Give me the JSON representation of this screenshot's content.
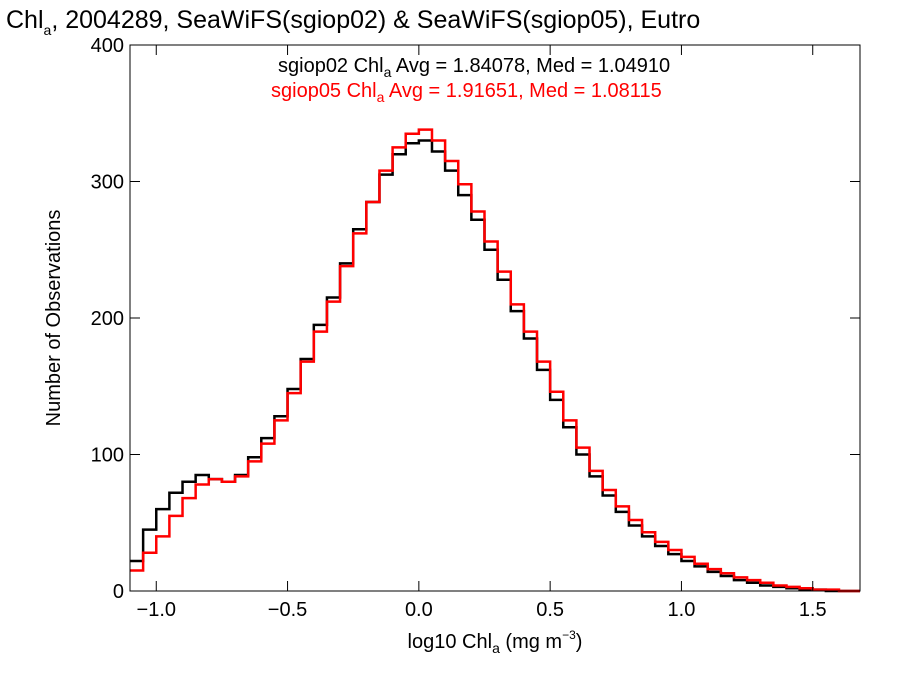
{
  "chart_data": {
    "type": "line",
    "title_main": "Chl",
    "title_sub": "a",
    "title_rest": ", 2004289, SeaWiFS(sgiop02) & SeaWiFS(sgiop05), Eutro",
    "xlabel_main": "log10 Chl",
    "xlabel_sub": "a",
    "xlabel_units": " (mg m",
    "xlabel_sup": "−3",
    "xlabel_close": ")",
    "ylabel": "Number of Observations",
    "xlim": [
      -1.1,
      1.68
    ],
    "ylim": [
      0,
      400
    ],
    "x_ticks": [
      -1.0,
      -0.5,
      0.0,
      0.5,
      1.0,
      1.5
    ],
    "x_tick_labels": [
      "−1.0",
      "−0.5",
      "0.0",
      "0.5",
      "1.0",
      "1.5"
    ],
    "y_ticks": [
      0,
      100,
      200,
      300,
      400
    ],
    "y_tick_labels": [
      "0",
      "100",
      "200",
      "300",
      "400"
    ],
    "annotations": [
      {
        "prefix": "sgiop02 Chl",
        "sub": "a",
        "text": " Avg = 1.84078, Med = 1.04910",
        "color": "#000000"
      },
      {
        "prefix": "sgiop05 Chl",
        "sub": "a",
        "text": " Avg = 1.91651, Med = 1.08115",
        "color": "#ff0000"
      }
    ],
    "series": [
      {
        "color": "#000000",
        "x": [
          -1.1,
          -1.05,
          -1.0,
          -0.95,
          -0.9,
          -0.85,
          -0.8,
          -0.75,
          -0.7,
          -0.65,
          -0.6,
          -0.55,
          -0.5,
          -0.45,
          -0.4,
          -0.35,
          -0.3,
          -0.25,
          -0.2,
          -0.15,
          -0.1,
          -0.05,
          0.0,
          0.05,
          0.1,
          0.15,
          0.2,
          0.25,
          0.3,
          0.35,
          0.4,
          0.45,
          0.5,
          0.55,
          0.6,
          0.65,
          0.7,
          0.75,
          0.8,
          0.85,
          0.9,
          0.95,
          1.0,
          1.05,
          1.1,
          1.15,
          1.2,
          1.25,
          1.3,
          1.35,
          1.4,
          1.45,
          1.5,
          1.55,
          1.6,
          1.65
        ],
        "y": [
          22,
          45,
          60,
          72,
          80,
          85,
          82,
          80,
          85,
          98,
          112,
          128,
          148,
          170,
          195,
          215,
          240,
          265,
          285,
          305,
          320,
          328,
          330,
          322,
          308,
          290,
          272,
          250,
          228,
          205,
          185,
          162,
          140,
          120,
          100,
          84,
          70,
          58,
          48,
          40,
          33,
          27,
          22,
          18,
          14,
          11,
          8,
          6,
          4,
          3,
          2,
          1,
          1,
          0,
          0,
          0
        ]
      },
      {
        "color": "#ff0000",
        "x": [
          -1.1,
          -1.05,
          -1.0,
          -0.95,
          -0.9,
          -0.85,
          -0.8,
          -0.75,
          -0.7,
          -0.65,
          -0.6,
          -0.55,
          -0.5,
          -0.45,
          -0.4,
          -0.35,
          -0.3,
          -0.25,
          -0.2,
          -0.15,
          -0.1,
          -0.05,
          0.0,
          0.05,
          0.1,
          0.15,
          0.2,
          0.25,
          0.3,
          0.35,
          0.4,
          0.45,
          0.5,
          0.55,
          0.6,
          0.65,
          0.7,
          0.75,
          0.8,
          0.85,
          0.9,
          0.95,
          1.0,
          1.05,
          1.1,
          1.15,
          1.2,
          1.25,
          1.3,
          1.35,
          1.4,
          1.45,
          1.5,
          1.55,
          1.6,
          1.65
        ],
        "y": [
          15,
          28,
          40,
          55,
          68,
          78,
          82,
          80,
          84,
          95,
          108,
          125,
          145,
          168,
          190,
          212,
          238,
          262,
          285,
          308,
          325,
          335,
          338,
          330,
          315,
          298,
          278,
          256,
          234,
          210,
          190,
          168,
          146,
          125,
          105,
          88,
          74,
          62,
          52,
          43,
          36,
          30,
          25,
          20,
          16,
          13,
          10,
          8,
          6,
          4,
          3,
          2,
          1,
          1,
          0,
          0
        ]
      }
    ]
  }
}
